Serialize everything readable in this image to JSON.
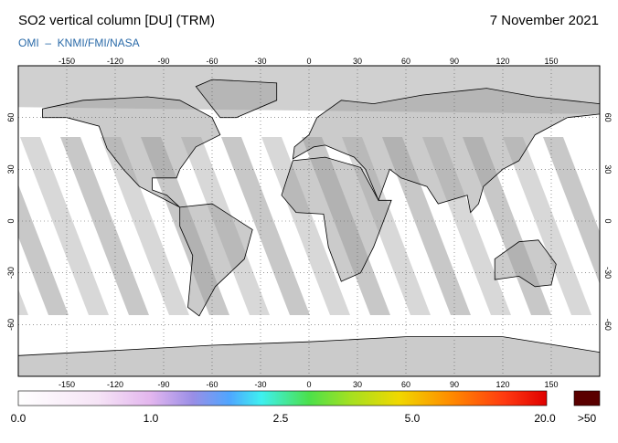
{
  "header": {
    "title": "SO2 vertical column [DU] (TRM)",
    "date": "7 November 2021",
    "credit": "OMI  –  KNMI/FMI/NASA"
  },
  "map": {
    "lon_ticks": [
      -150,
      -120,
      -90,
      -60,
      -30,
      0,
      30,
      60,
      90,
      120,
      150
    ],
    "lat_ticks": [
      60,
      30,
      0,
      -30,
      -60
    ]
  },
  "colorbar": {
    "labels": [
      "0.0",
      "1.0",
      "2.5",
      "5.0",
      "20.0"
    ],
    "overflow": ">50"
  }
}
